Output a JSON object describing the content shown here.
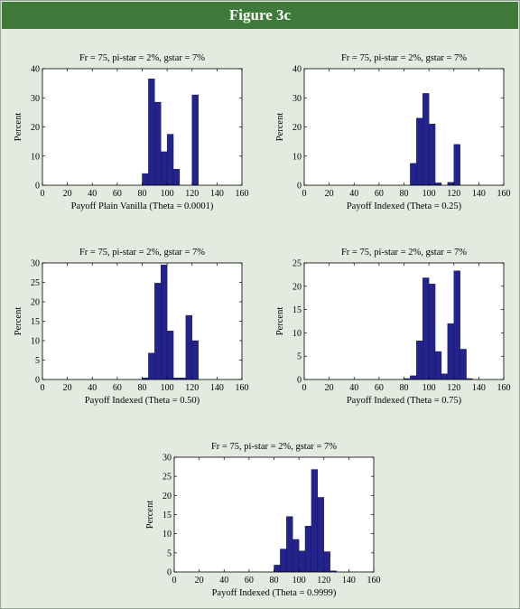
{
  "figure": {
    "title": "Figure 3c"
  },
  "chart_data": [
    {
      "type": "bar",
      "title": "Fr = 75, pi-star = 2%, gstar = 7%",
      "xlabel": "Payoff Plain Vanilla (Theta = 0.0001)",
      "ylabel": "Percent",
      "xlim": [
        0,
        160
      ],
      "ylim": [
        0,
        40
      ],
      "xticks": [
        0,
        20,
        40,
        60,
        80,
        100,
        120,
        140,
        160
      ],
      "yticks": [
        0,
        10,
        20,
        30,
        40
      ],
      "bin_width": 5,
      "bins": [
        {
          "x": 80,
          "y": 4
        },
        {
          "x": 85,
          "y": 36.5
        },
        {
          "x": 90,
          "y": 28.5
        },
        {
          "x": 95,
          "y": 11.5
        },
        {
          "x": 100,
          "y": 17.5
        },
        {
          "x": 105,
          "y": 5.5
        },
        {
          "x": 120,
          "y": 31
        }
      ]
    },
    {
      "type": "bar",
      "title": "Fr = 75, pi-star = 2%, gstar = 7%",
      "xlabel": "Payoff Indexed (Theta = 0.25)",
      "ylabel": "Percent",
      "xlim": [
        0,
        160
      ],
      "ylim": [
        0,
        40
      ],
      "xticks": [
        0,
        20,
        40,
        60,
        80,
        100,
        120,
        140,
        160
      ],
      "yticks": [
        0,
        10,
        20,
        30,
        40
      ],
      "bin_width": 5,
      "bins": [
        {
          "x": 85,
          "y": 7.5
        },
        {
          "x": 90,
          "y": 23
        },
        {
          "x": 95,
          "y": 31.5
        },
        {
          "x": 100,
          "y": 21
        },
        {
          "x": 105,
          "y": 0.8
        },
        {
          "x": 115,
          "y": 1
        },
        {
          "x": 120,
          "y": 14
        }
      ]
    },
    {
      "type": "bar",
      "title": "Fr = 75, pi-star = 2%, gstar = 7%",
      "xlabel": "Payoff Indexed (Theta = 0.50)",
      "ylabel": "Percent",
      "xlim": [
        0,
        160
      ],
      "ylim": [
        0,
        30
      ],
      "xticks": [
        0,
        20,
        40,
        60,
        80,
        100,
        120,
        140,
        160
      ],
      "yticks": [
        0,
        5,
        10,
        15,
        20,
        25,
        30
      ],
      "bin_width": 5,
      "bins": [
        {
          "x": 80,
          "y": 0.4
        },
        {
          "x": 85,
          "y": 6.8
        },
        {
          "x": 90,
          "y": 24.8
        },
        {
          "x": 95,
          "y": 29.5
        },
        {
          "x": 100,
          "y": 12.5
        },
        {
          "x": 105,
          "y": 0.4
        },
        {
          "x": 110,
          "y": 0.4
        },
        {
          "x": 115,
          "y": 16.5
        },
        {
          "x": 120,
          "y": 10
        }
      ]
    },
    {
      "type": "bar",
      "title": "Fr = 75, pi-star = 2%, gstar = 7%",
      "xlabel": "Payoff Indexed (Theta = 0.75)",
      "ylabel": "Percent",
      "xlim": [
        0,
        160
      ],
      "ylim": [
        0,
        25
      ],
      "xticks": [
        0,
        20,
        40,
        60,
        80,
        100,
        120,
        140,
        160
      ],
      "yticks": [
        0,
        5,
        10,
        15,
        20,
        25
      ],
      "bin_width": 5,
      "bins": [
        {
          "x": 80,
          "y": 0.2
        },
        {
          "x": 85,
          "y": 0.8
        },
        {
          "x": 90,
          "y": 8.3
        },
        {
          "x": 95,
          "y": 21.8
        },
        {
          "x": 100,
          "y": 20.5
        },
        {
          "x": 105,
          "y": 6
        },
        {
          "x": 110,
          "y": 1.2
        },
        {
          "x": 115,
          "y": 12
        },
        {
          "x": 120,
          "y": 23.3
        },
        {
          "x": 125,
          "y": 6.5
        },
        {
          "x": 130,
          "y": 0.2
        }
      ]
    },
    {
      "type": "bar",
      "title": "Fr = 75, pi-star = 2%, gstar = 7%",
      "xlabel": "Payoff Indexed (Theta = 0.9999)",
      "ylabel": "Percent",
      "xlim": [
        0,
        160
      ],
      "ylim": [
        0,
        30
      ],
      "xticks": [
        0,
        20,
        40,
        60,
        80,
        100,
        120,
        140,
        160
      ],
      "yticks": [
        0,
        5,
        10,
        15,
        20,
        25,
        30
      ],
      "bin_width": 5,
      "bins": [
        {
          "x": 80,
          "y": 1.8
        },
        {
          "x": 85,
          "y": 6
        },
        {
          "x": 90,
          "y": 14.5
        },
        {
          "x": 95,
          "y": 8.5
        },
        {
          "x": 100,
          "y": 5.5
        },
        {
          "x": 105,
          "y": 12
        },
        {
          "x": 110,
          "y": 26.8
        },
        {
          "x": 115,
          "y": 19.5
        },
        {
          "x": 120,
          "y": 5.3
        },
        {
          "x": 125,
          "y": 0.3
        }
      ]
    }
  ],
  "colors": {
    "banner": "#3f7a3a",
    "background": "#e3ebe0",
    "bar_fill": "#23238c",
    "bar_stroke": "#0d0d55",
    "axes_bg": "#ffffff"
  }
}
